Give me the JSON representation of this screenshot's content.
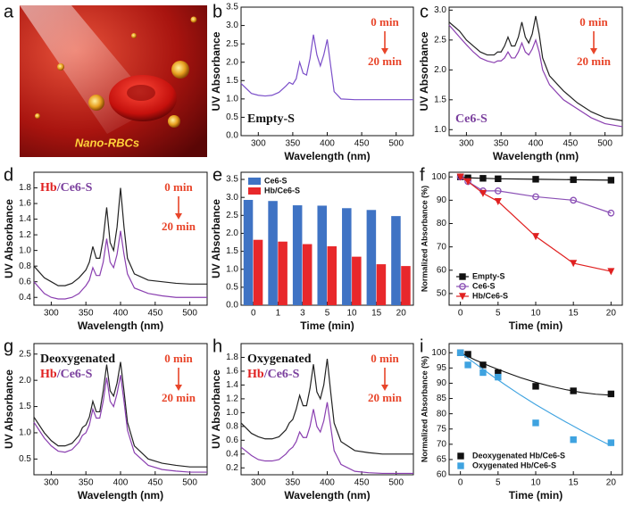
{
  "image_panel": {
    "panel_label": "a",
    "caption": "Nano-RBCs"
  },
  "chart_data": [
    {
      "type": "line",
      "panel_label": "b",
      "x_label": "Wavelength (nm)",
      "y_label": "UV Absorbance",
      "x": [
        275,
        290,
        300,
        310,
        320,
        330,
        340,
        345,
        350,
        355,
        360,
        365,
        370,
        375,
        380,
        385,
        390,
        395,
        400,
        405,
        410,
        420,
        440,
        460,
        480,
        500,
        525
      ],
      "series": [
        {
          "color": "#7b4fc9",
          "values": [
            1.42,
            1.15,
            1.1,
            1.08,
            1.1,
            1.18,
            1.35,
            1.45,
            1.4,
            1.55,
            2.0,
            1.7,
            1.65,
            2.1,
            2.75,
            2.2,
            1.9,
            2.2,
            2.62,
            1.9,
            1.2,
            1.0,
            0.98,
            0.98,
            0.98,
            0.98,
            0.98
          ]
        }
      ],
      "xlim": [
        275,
        525
      ],
      "xticks": [
        300,
        350,
        400,
        450,
        500
      ],
      "ylim": [
        0,
        3.5
      ],
      "yticks": [
        {
          "value": 0,
          "label": "0.0"
        },
        0.5,
        {
          "value": 1,
          "label": "1.0"
        },
        1.5,
        {
          "value": 2,
          "label": "2.0"
        },
        2.5,
        {
          "value": 3,
          "label": "3.0"
        },
        3.5
      ],
      "labels_corner": "bottom-left",
      "labels": [
        [
          {
            "text": "Empty-S",
            "color": "#111111"
          }
        ]
      ],
      "time_arrow": {
        "from": "0 min",
        "to": "20 min",
        "color": "#e8452a"
      }
    },
    {
      "type": "line",
      "panel_label": "c",
      "x_label": "Wavelength (nm)",
      "y_label": "UV Absorbance",
      "x": [
        275,
        290,
        300,
        310,
        320,
        330,
        340,
        345,
        350,
        355,
        360,
        365,
        370,
        375,
        380,
        385,
        390,
        395,
        400,
        405,
        410,
        420,
        440,
        460,
        480,
        500,
        525
      ],
      "series": [
        {
          "color": "#222222",
          "values": [
            2.8,
            2.65,
            2.5,
            2.4,
            2.3,
            2.25,
            2.25,
            2.3,
            2.3,
            2.4,
            2.55,
            2.4,
            2.4,
            2.55,
            2.8,
            2.55,
            2.45,
            2.6,
            2.9,
            2.6,
            2.2,
            1.9,
            1.65,
            1.45,
            1.3,
            1.2,
            1.15
          ]
        },
        {
          "color": "#8a3fb0",
          "values": [
            2.75,
            2.55,
            2.42,
            2.3,
            2.2,
            2.15,
            2.12,
            2.15,
            2.15,
            2.2,
            2.3,
            2.2,
            2.2,
            2.3,
            2.45,
            2.3,
            2.25,
            2.35,
            2.5,
            2.3,
            2.0,
            1.75,
            1.5,
            1.35,
            1.2,
            1.1,
            1.05
          ]
        }
      ],
      "xlim": [
        275,
        525
      ],
      "xticks": [
        300,
        350,
        400,
        450,
        500
      ],
      "ylim": [
        0.9,
        3.05
      ],
      "yticks": [
        {
          "value": 1,
          "label": "1.0"
        },
        1.5,
        {
          "value": 2,
          "label": "2.0"
        },
        2.5,
        {
          "value": 3,
          "label": "3.0"
        }
      ],
      "labels_corner": "bottom-left",
      "labels": [
        [
          {
            "text": "Ce6-S",
            "color": "#7a3f9d"
          }
        ]
      ],
      "time_arrow": {
        "from": "0 min",
        "to": "20 min",
        "color": "#e8452a"
      }
    },
    {
      "type": "line",
      "panel_label": "d",
      "x_label": "Wavelength (nm)",
      "y_label": "UV Absorbance",
      "x": [
        275,
        290,
        300,
        310,
        320,
        330,
        340,
        345,
        350,
        355,
        360,
        365,
        370,
        375,
        380,
        385,
        390,
        395,
        400,
        405,
        410,
        420,
        440,
        460,
        480,
        500,
        525
      ],
      "series": [
        {
          "color": "#222222",
          "values": [
            0.8,
            0.65,
            0.6,
            0.55,
            0.55,
            0.58,
            0.65,
            0.7,
            0.75,
            0.85,
            1.05,
            0.9,
            0.9,
            1.15,
            1.55,
            1.1,
            1.0,
            1.3,
            1.8,
            1.3,
            0.9,
            0.7,
            0.62,
            0.6,
            0.58,
            0.57,
            0.57
          ]
        },
        {
          "color": "#8a3fb0",
          "values": [
            0.6,
            0.45,
            0.4,
            0.38,
            0.38,
            0.4,
            0.45,
            0.5,
            0.55,
            0.62,
            0.78,
            0.68,
            0.68,
            0.85,
            1.15,
            0.85,
            0.78,
            0.95,
            1.25,
            0.95,
            0.7,
            0.52,
            0.45,
            0.42,
            0.4,
            0.4,
            0.4
          ]
        }
      ],
      "xlim": [
        275,
        525
      ],
      "xticks": [
        300,
        350,
        400,
        450,
        500
      ],
      "ylim": [
        0.3,
        2.0
      ],
      "yticks": [
        0.4,
        0.6,
        0.8,
        {
          "value": 1,
          "label": "1.0"
        },
        1.2,
        1.4,
        1.6,
        1.8
      ],
      "labels_corner": "top-left",
      "labels": [
        [
          {
            "text": "Hb",
            "color": "#e02020"
          },
          {
            "text": "/Ce6-S",
            "color": "#7a3f9d"
          }
        ]
      ],
      "time_arrow": {
        "from": "0 min",
        "to": "20 min",
        "color": "#e8452a"
      }
    },
    {
      "type": "bar",
      "panel_label": "e",
      "x_label": "Time (min)",
      "y_label": "UV Absorbance",
      "categories": [
        "0",
        "1",
        "3",
        "5",
        "10",
        "15",
        "20"
      ],
      "series": [
        {
          "name": "Ce6-S",
          "color": "#3f73c4",
          "values": [
            2.93,
            2.9,
            2.78,
            2.77,
            2.7,
            2.65,
            2.48
          ]
        },
        {
          "name": "Hb/Ce6-S",
          "color": "#e8282b",
          "values": [
            1.82,
            1.77,
            1.7,
            1.64,
            1.35,
            1.14,
            1.09
          ]
        }
      ],
      "ylim": [
        0,
        3.7
      ],
      "yticks": [
        {
          "value": 0,
          "label": "0.0"
        },
        0.5,
        {
          "value": 1,
          "label": "1.0"
        },
        1.5,
        {
          "value": 2,
          "label": "2.0"
        },
        2.5,
        {
          "value": 3,
          "label": "3.0"
        },
        3.5
      ],
      "legend": "top-left"
    },
    {
      "type": "line",
      "panel_label": "f",
      "x_label": "Time (min)",
      "y_label": "Normalized Absorbance (%)",
      "x": [
        0,
        1,
        3,
        5,
        10,
        15,
        20
      ],
      "series": [
        {
          "name": "Empty-S",
          "color": "#111111",
          "marker": "square",
          "values": [
            100,
            99.6,
            99.4,
            99.2,
            99,
            98.8,
            98.6
          ]
        },
        {
          "name": "Ce6-S",
          "color": "#8a4fb5",
          "marker": "circle",
          "values": [
            100,
            98,
            94,
            94,
            91.5,
            90,
            84.5
          ]
        },
        {
          "name": "Hb/Ce6-S",
          "color": "#e02020",
          "marker": "triangle",
          "values": [
            100,
            98,
            93,
            89.5,
            74.5,
            63,
            59.5
          ]
        }
      ],
      "xlim": [
        -1.5,
        21.5
      ],
      "xticks": [
        0,
        5,
        10,
        15,
        20
      ],
      "ylim": [
        45,
        102
      ],
      "yticks": [
        50,
        60,
        70,
        80,
        90,
        100
      ],
      "legend": "bottom-left"
    },
    {
      "type": "line",
      "panel_label": "g",
      "x_label": "Wavelength (nm)",
      "y_label": "UV Absorbance",
      "x": [
        275,
        290,
        300,
        310,
        320,
        330,
        340,
        345,
        350,
        355,
        360,
        365,
        370,
        375,
        380,
        385,
        390,
        395,
        400,
        405,
        410,
        420,
        440,
        460,
        480,
        500,
        525
      ],
      "series": [
        {
          "color": "#222222",
          "values": [
            1.3,
            1.0,
            0.85,
            0.75,
            0.75,
            0.8,
            0.95,
            1.1,
            1.15,
            1.3,
            1.6,
            1.4,
            1.4,
            1.8,
            2.3,
            1.8,
            1.7,
            1.95,
            2.35,
            1.8,
            1.2,
            0.75,
            0.5,
            0.42,
            0.38,
            0.35,
            0.35
          ]
        },
        {
          "color": "#8a3fb0",
          "values": [
            1.2,
            0.9,
            0.75,
            0.65,
            0.63,
            0.68,
            0.82,
            0.95,
            1.0,
            1.15,
            1.45,
            1.28,
            1.28,
            1.6,
            2.05,
            1.6,
            1.5,
            1.75,
            2.1,
            1.6,
            1.05,
            0.62,
            0.38,
            0.3,
            0.27,
            0.25,
            0.25
          ]
        }
      ],
      "xlim": [
        275,
        525
      ],
      "xticks": [
        300,
        350,
        400,
        450,
        500
      ],
      "ylim": [
        0.2,
        2.7
      ],
      "yticks": [
        0.5,
        {
          "value": 1,
          "label": "1.0"
        },
        1.5,
        {
          "value": 2,
          "label": "2.0"
        },
        2.5
      ],
      "labels_corner": "top-left",
      "labels": [
        [
          {
            "text": "Deoxygenated",
            "color": "#111111"
          }
        ],
        [
          {
            "text": "Hb",
            "color": "#e02020"
          },
          {
            "text": "/Ce6-S",
            "color": "#7a3f9d"
          }
        ]
      ],
      "time_arrow": {
        "from": "0 min",
        "to": "20 min",
        "color": "#e8452a"
      }
    },
    {
      "type": "line",
      "panel_label": "h",
      "x_label": "Wavelength (nm)",
      "y_label": "UV Absorbance",
      "x": [
        275,
        290,
        300,
        310,
        320,
        330,
        340,
        345,
        350,
        355,
        360,
        365,
        370,
        375,
        380,
        385,
        390,
        395,
        400,
        405,
        410,
        420,
        440,
        460,
        480,
        500,
        525
      ],
      "series": [
        {
          "color": "#222222",
          "values": [
            0.85,
            0.7,
            0.65,
            0.62,
            0.62,
            0.65,
            0.75,
            0.85,
            0.9,
            1.05,
            1.25,
            1.1,
            1.1,
            1.35,
            1.7,
            1.3,
            1.2,
            1.4,
            1.78,
            1.3,
            0.85,
            0.58,
            0.45,
            0.42,
            0.4,
            0.4,
            0.4
          ]
        },
        {
          "color": "#8a3fb0",
          "values": [
            0.5,
            0.38,
            0.32,
            0.3,
            0.3,
            0.32,
            0.4,
            0.46,
            0.5,
            0.58,
            0.72,
            0.64,
            0.64,
            0.8,
            1.05,
            0.8,
            0.72,
            0.88,
            1.15,
            0.8,
            0.45,
            0.25,
            0.15,
            0.13,
            0.12,
            0.12,
            0.12
          ]
        }
      ],
      "xlim": [
        275,
        525
      ],
      "xticks": [
        300,
        350,
        400,
        450,
        500
      ],
      "ylim": [
        0.1,
        2.0
      ],
      "yticks": [
        0.2,
        0.4,
        0.6,
        0.8,
        {
          "value": 1,
          "label": "1.0"
        },
        1.2,
        1.4,
        1.6,
        1.8
      ],
      "labels_corner": "top-left",
      "labels": [
        [
          {
            "text": "Oxygenated",
            "color": "#111111"
          }
        ],
        [
          {
            "text": "Hb",
            "color": "#e02020"
          },
          {
            "text": "/Ce6-S",
            "color": "#7a3f9d"
          }
        ]
      ],
      "time_arrow": {
        "from": "0 min",
        "to": "20 min",
        "color": "#e8452a"
      }
    },
    {
      "type": "scatter",
      "panel_label": "i",
      "x_label": "Time (min)",
      "y_label": "Normalized Absorbance (%)",
      "x": [
        0,
        1,
        3,
        5,
        10,
        15,
        20
      ],
      "fit_x": [
        0,
        2,
        4,
        6,
        8,
        10,
        12,
        14,
        16,
        18,
        20
      ],
      "series": [
        {
          "name": "Deoxygenated Hb/Ce6-S",
          "color": "#111111",
          "values": [
            100,
            99.5,
            96,
            93.5,
            89,
            87.5,
            86.5
          ],
          "fit": [
            100,
            97.6,
            95.5,
            93.6,
            91.8,
            90.3,
            89,
            87.9,
            87,
            86.4,
            86.1
          ]
        },
        {
          "name": "Oxygenated Hb/Ce6-S",
          "color": "#3fa3e0",
          "values": [
            100,
            96,
            93.5,
            92,
            77,
            71.5,
            70.5
          ],
          "fit": [
            100,
            96.4,
            92.8,
            89.4,
            86.1,
            83,
            80.1,
            77.3,
            74.6,
            72,
            69.5
          ]
        }
      ],
      "xlim": [
        -1.5,
        21.5
      ],
      "xticks": [
        0,
        5,
        10,
        15,
        20
      ],
      "ylim": [
        60,
        103
      ],
      "yticks": [
        60,
        65,
        70,
        75,
        80,
        85,
        90,
        95,
        100
      ],
      "legend": "bottom-left"
    }
  ]
}
